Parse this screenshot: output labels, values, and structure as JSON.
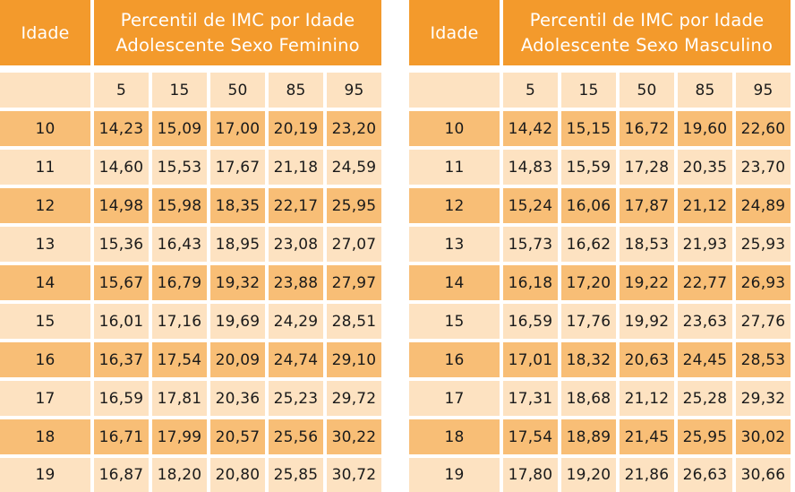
{
  "tables": [
    {
      "idade_label": "Idade",
      "title_line1": "Percentil de IMC por Idade",
      "title_line2": "Adolescente Sexo Feminino",
      "percentiles": [
        "5",
        "15",
        "50",
        "85",
        "95"
      ],
      "rows": [
        {
          "age": "10",
          "values": [
            "14,23",
            "15,09",
            "17,00",
            "20,19",
            "23,20"
          ]
        },
        {
          "age": "11",
          "values": [
            "14,60",
            "15,53",
            "17,67",
            "21,18",
            "24,59"
          ]
        },
        {
          "age": "12",
          "values": [
            "14,98",
            "15,98",
            "18,35",
            "22,17",
            "25,95"
          ]
        },
        {
          "age": "13",
          "values": [
            "15,36",
            "16,43",
            "18,95",
            "23,08",
            "27,07"
          ]
        },
        {
          "age": "14",
          "values": [
            "15,67",
            "16,79",
            "19,32",
            "23,88",
            "27,97"
          ]
        },
        {
          "age": "15",
          "values": [
            "16,01",
            "17,16",
            "19,69",
            "24,29",
            "28,51"
          ]
        },
        {
          "age": "16",
          "values": [
            "16,37",
            "17,54",
            "20,09",
            "24,74",
            "29,10"
          ]
        },
        {
          "age": "17",
          "values": [
            "16,59",
            "17,81",
            "20,36",
            "25,23",
            "29,72"
          ]
        },
        {
          "age": "18",
          "values": [
            "16,71",
            "17,99",
            "20,57",
            "25,56",
            "30,22"
          ]
        },
        {
          "age": "19",
          "values": [
            "16,87",
            "18,20",
            "20,80",
            "25,85",
            "30,72"
          ]
        }
      ]
    },
    {
      "idade_label": "Idade",
      "title_line1": "Percentil de IMC por Idade",
      "title_line2": "Adolescente Sexo Masculino",
      "percentiles": [
        "5",
        "15",
        "50",
        "85",
        "95"
      ],
      "rows": [
        {
          "age": "10",
          "values": [
            "14,42",
            "15,15",
            "16,72",
            "19,60",
            "22,60"
          ]
        },
        {
          "age": "11",
          "values": [
            "14,83",
            "15,59",
            "17,28",
            "20,35",
            "23,70"
          ]
        },
        {
          "age": "12",
          "values": [
            "15,24",
            "16,06",
            "17,87",
            "21,12",
            "24,89"
          ]
        },
        {
          "age": "13",
          "values": [
            "15,73",
            "16,62",
            "18,53",
            "21,93",
            "25,93"
          ]
        },
        {
          "age": "14",
          "values": [
            "16,18",
            "17,20",
            "19,22",
            "22,77",
            "26,93"
          ]
        },
        {
          "age": "15",
          "values": [
            "16,59",
            "17,76",
            "19,92",
            "23,63",
            "27,76"
          ]
        },
        {
          "age": "16",
          "values": [
            "17,01",
            "18,32",
            "20,63",
            "24,45",
            "28,53"
          ]
        },
        {
          "age": "17",
          "values": [
            "17,31",
            "18,68",
            "21,12",
            "25,28",
            "29,32"
          ]
        },
        {
          "age": "18",
          "values": [
            "17,54",
            "18,89",
            "21,45",
            "25,95",
            "30,02"
          ]
        },
        {
          "age": "19",
          "values": [
            "17,80",
            "19,20",
            "21,86",
            "26,63",
            "30,66"
          ]
        }
      ]
    }
  ]
}
